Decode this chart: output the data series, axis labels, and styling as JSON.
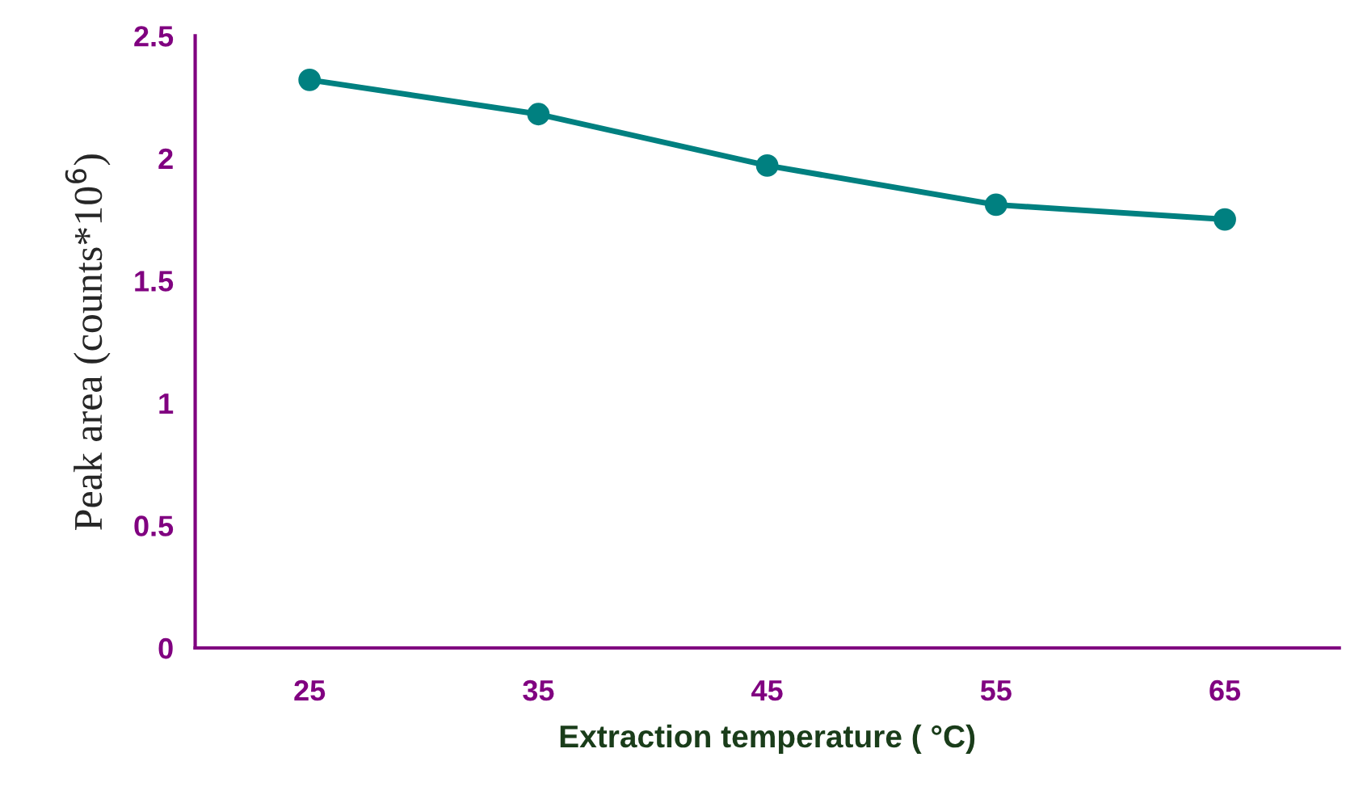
{
  "chart_data": {
    "type": "line",
    "xlabel": "Extraction temperature ( °C)",
    "ylabel": "Peak area (counts*10$^{6}$)",
    "categories": [
      "25",
      "35",
      "45",
      "55",
      "65"
    ],
    "series": [
      {
        "color": "#008080",
        "values": [
          2.32,
          2.18,
          1.97,
          1.81,
          1.75
        ]
      }
    ],
    "ylim": [
      0,
      2.5
    ],
    "yticks": [
      0,
      0.5,
      1,
      1.5,
      2,
      2.5
    ],
    "grid": false,
    "marker": "circle",
    "line_style": "solid"
  }
}
